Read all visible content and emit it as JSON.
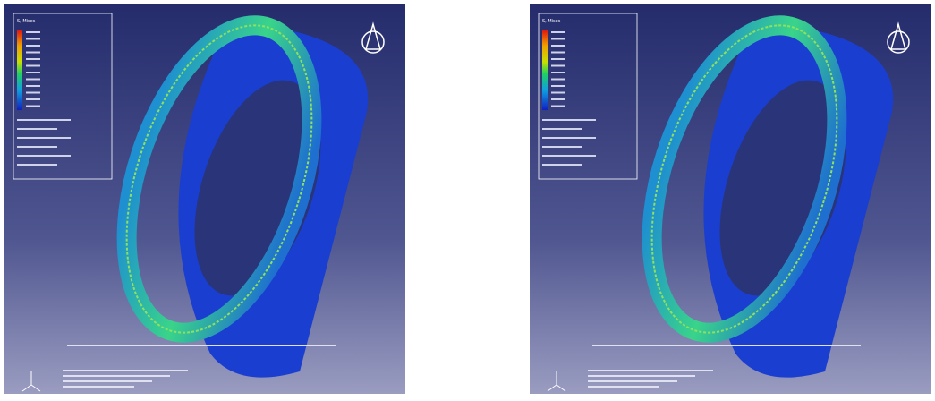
{
  "panels": [
    {
      "legend_title": "S, Mises"
    },
    {
      "legend_title": "S, Mises"
    }
  ]
}
